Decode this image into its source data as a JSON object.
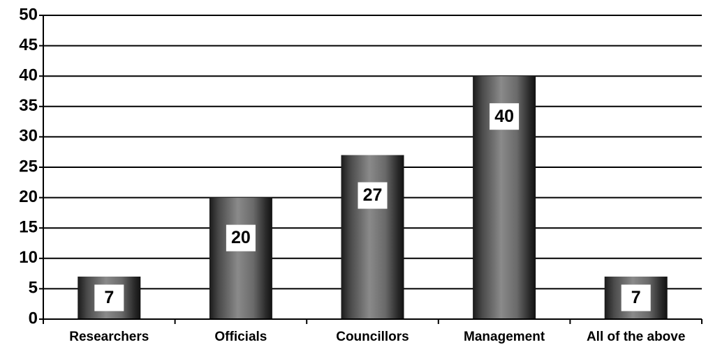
{
  "chart_data": {
    "type": "bar",
    "categories": [
      "Researchers",
      "Officials",
      "Councillors",
      "Management",
      "All of the above"
    ],
    "values": [
      7,
      20,
      27,
      40,
      7
    ],
    "color": "#555555",
    "ylim": [
      0,
      50
    ],
    "yticks": [
      0,
      5,
      10,
      15,
      20,
      25,
      30,
      35,
      40,
      45,
      50
    ],
    "grid": true
  }
}
